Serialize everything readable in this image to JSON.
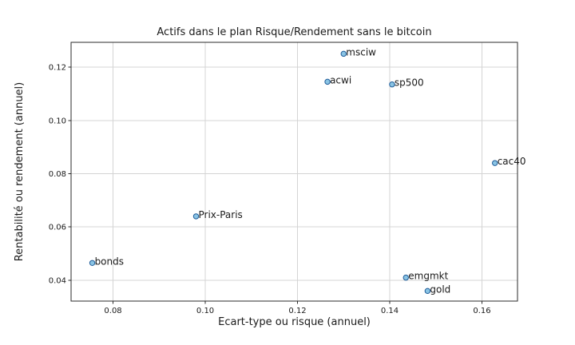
{
  "chart_data": {
    "type": "scatter",
    "title": "Actifs dans le plan Risque/Rendement sans le bitcoin",
    "xlabel": "Ecart-type ou risque (annuel)",
    "ylabel": "Rentabilité ou rendement (annuel)",
    "xlim": [
      0.0709,
      0.1677
    ],
    "ylim": [
      0.0322,
      0.1293
    ],
    "xticks": [
      0.08,
      0.1,
      0.12,
      0.14,
      0.16
    ],
    "xtick_labels": [
      "0.08",
      "0.10",
      "0.12",
      "0.14",
      "0.16"
    ],
    "yticks": [
      0.04,
      0.06,
      0.08,
      0.1,
      0.12
    ],
    "ytick_labels": [
      "0.04",
      "0.06",
      "0.08",
      "0.10",
      "0.12"
    ],
    "grid": true,
    "legend": null,
    "points": [
      {
        "label": "msciw",
        "x": 0.13,
        "y": 0.125
      },
      {
        "label": "acwi",
        "x": 0.1265,
        "y": 0.1145
      },
      {
        "label": "sp500",
        "x": 0.1405,
        "y": 0.1135
      },
      {
        "label": "cac40",
        "x": 0.1628,
        "y": 0.084
      },
      {
        "label": "Prix-Paris",
        "x": 0.098,
        "y": 0.064
      },
      {
        "label": "bonds",
        "x": 0.0755,
        "y": 0.0465
      },
      {
        "label": "emgmkt",
        "x": 0.1435,
        "y": 0.041
      },
      {
        "label": "gold",
        "x": 0.1482,
        "y": 0.036
      }
    ],
    "colors": {
      "marker_fill": "#8ac4e4",
      "marker_edge": "#1f5c99",
      "grid": "#d4d4d4",
      "axis": "#2b2b2b",
      "text": "#1a1a1a",
      "background": "#ffffff"
    }
  }
}
